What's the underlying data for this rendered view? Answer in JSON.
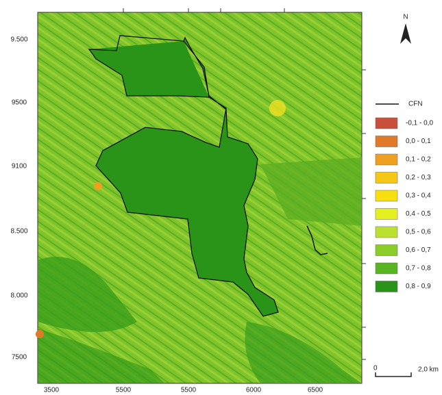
{
  "map": {
    "north": "N",
    "scale_label": "2,0 km",
    "left_labels": [
      "9.500",
      "9500",
      "9100",
      "8.500",
      "8.000",
      "7500"
    ],
    "bottom_labels": [
      "3500",
      "5500",
      "5500",
      "6000",
      "6500"
    ],
    "legend": {
      "boundary": "CFN",
      "classes": [
        {
          "label": "-0,1 - 0,0",
          "color": "#c8503a"
        },
        {
          "label": "0,0 - 0,1",
          "color": "#e07a28"
        },
        {
          "label": "0,1 - 0,2",
          "color": "#eea020"
        },
        {
          "label": "0,2 - 0,3",
          "color": "#f5c818"
        },
        {
          "label": "0,3 - 0,4",
          "color": "#f8e010"
        },
        {
          "label": "0,4 - 0,5",
          "color": "#e4f020"
        },
        {
          "label": "0,5 - 0,6",
          "color": "#bce030"
        },
        {
          "label": "0,6 - 0,7",
          "color": "#8ccc28"
        },
        {
          "label": "0,7 - 0,8",
          "color": "#58b420"
        },
        {
          "label": "0,8 - 0,9",
          "color": "#2a9418"
        }
      ]
    }
  }
}
